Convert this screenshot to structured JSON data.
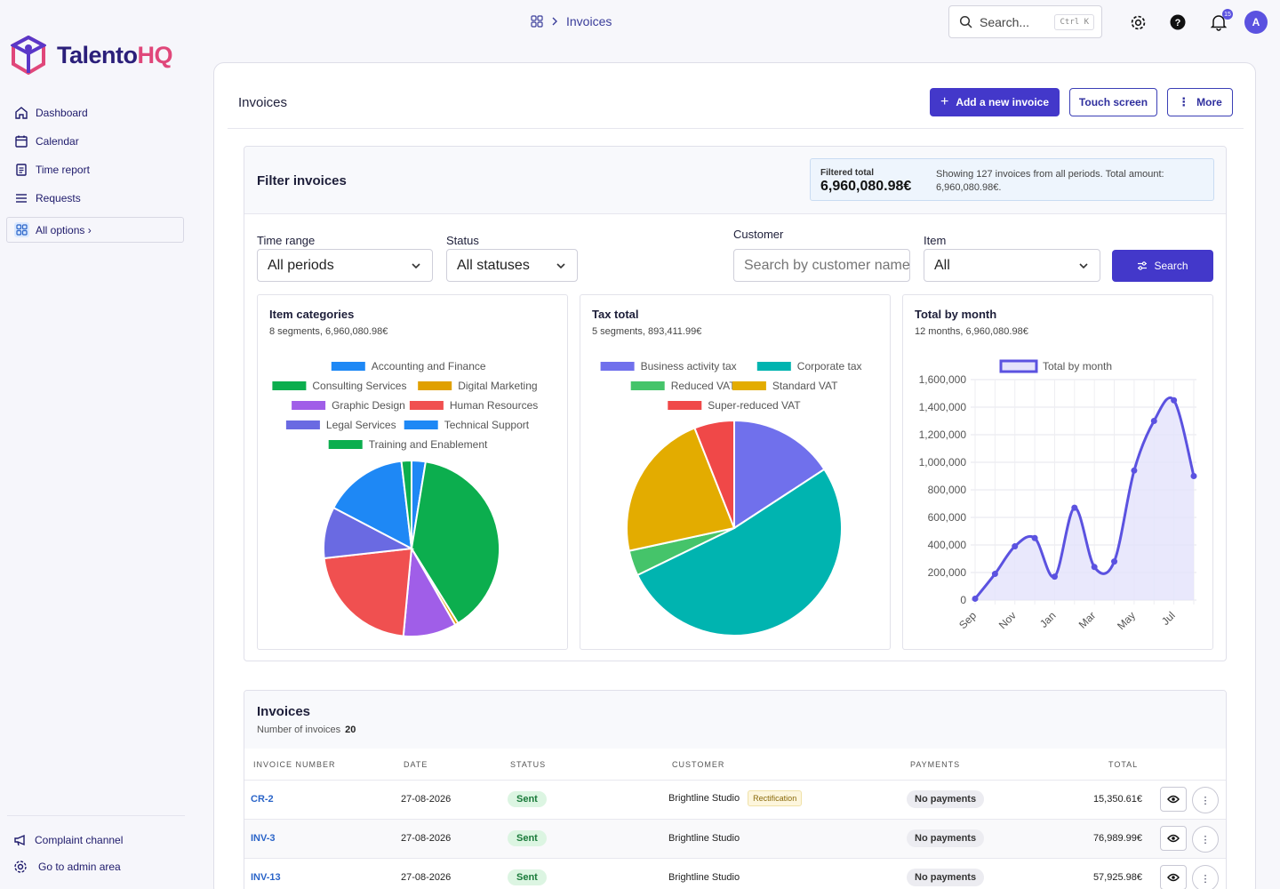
{
  "brand": {
    "name_part1": "Talento",
    "name_part2": "HQ"
  },
  "sidebar": {
    "items": [
      {
        "label": "Dashboard"
      },
      {
        "label": "Calendar"
      },
      {
        "label": "Time report"
      },
      {
        "label": "Requests"
      }
    ],
    "all_options": "All options ›",
    "bottom": [
      {
        "label": "Complaint channel"
      },
      {
        "label": "Go to admin area"
      }
    ]
  },
  "topbar": {
    "breadcrumb": "Invoices",
    "search_placeholder": "Search...",
    "search_shortcut": "Ctrl K",
    "notification_count": "15",
    "avatar_initial": "A"
  },
  "page": {
    "title": "Invoices",
    "add_button": "Add a new invoice",
    "touch_button": "Touch screen",
    "more_button": "More"
  },
  "filter": {
    "title": "Filter invoices",
    "total_label": "Filtered total",
    "total_value": "6,960,080.98€",
    "total_desc": "Showing 127 invoices from all periods. Total amount: 6,960,080.98€.",
    "time_range_label": "Time range",
    "time_range_value": "All periods",
    "status_label": "Status",
    "status_value": "All statuses",
    "customer_label": "Customer",
    "customer_placeholder": "Search by customer name",
    "item_label": "Item",
    "item_value": "All",
    "search_button": "Search"
  },
  "chart_data": [
    {
      "type": "pie",
      "title": "Item categories",
      "subtitle": "8 segments, 6,960,080.98€",
      "legend_placement": "top",
      "slices": [
        {
          "label": "Accounting and Finance",
          "value": 2.5,
          "color": "#1e88f5"
        },
        {
          "label": "Consulting Services",
          "value": 37.6,
          "color": "#0cae4e"
        },
        {
          "label": "Digital Marketing",
          "value": 0.6,
          "color": "#e0a000"
        },
        {
          "label": "Graphic Design",
          "value": 9.5,
          "color": "#a05ee8"
        },
        {
          "label": "Human Resources",
          "value": 21.2,
          "color": "#f05050"
        },
        {
          "label": "Legal Services",
          "value": 9.2,
          "color": "#6a6ae2"
        },
        {
          "label": "Technical Support",
          "value": 15.1,
          "color": "#1e88f5"
        },
        {
          "label": "Training and Enablement",
          "value": 1.8,
          "color": "#0cae4e"
        }
      ]
    },
    {
      "type": "pie",
      "title": "Tax total",
      "subtitle": "5 segments, 893,411.99€",
      "legend_placement": "top",
      "slices": [
        {
          "label": "Business activity tax",
          "value": 15.8,
          "color": "#7070ec"
        },
        {
          "label": "Corporate tax",
          "value": 52.0,
          "color": "#00b4b0"
        },
        {
          "label": "Reduced VAT",
          "value": 3.8,
          "color": "#45c46a"
        },
        {
          "label": "Standard VAT",
          "value": 22.4,
          "color": "#e3ac00"
        },
        {
          "label": "Super-reduced VAT",
          "value": 6.0,
          "color": "#f04848"
        }
      ]
    },
    {
      "type": "area",
      "title": "Total by month",
      "subtitle": "12 months, 6,960,080.98€",
      "series": [
        {
          "name": "Total by month",
          "values": [
            10000,
            190000,
            390000,
            450000,
            170000,
            670000,
            240000,
            280000,
            940000,
            1300000,
            1450000,
            900000
          ]
        }
      ],
      "x": [
        "Sep",
        "Oct",
        "Nov",
        "Dec",
        "Jan",
        "Feb",
        "Mar",
        "Apr",
        "May",
        "Jun",
        "Jul",
        "Aug"
      ],
      "x_tick_labels": [
        "Sep",
        "Nov",
        "Jan",
        "Mar",
        "May",
        "Jul"
      ],
      "y_ticks": [
        "0",
        "200,000",
        "400,000",
        "600,000",
        "800,000",
        "1,000,000",
        "1,200,000",
        "1,400,000",
        "1,600,000"
      ],
      "ylim": [
        0,
        1600000
      ],
      "grid": true,
      "legend_placement": "top",
      "line_color": "#5b52e0",
      "fill_color": "#e4e2fb"
    }
  ],
  "invoices": {
    "title": "Invoices",
    "count_label": "Number of invoices",
    "count": "20",
    "columns": [
      "INVOICE NUMBER",
      "DATE",
      "STATUS",
      "CUSTOMER",
      "PAYMENTS",
      "TOTAL"
    ],
    "rows": [
      {
        "number": "CR-2",
        "date": "27-08-2026",
        "status": "Sent",
        "customer": "Brightline Studio",
        "tag": "Rectification",
        "payments": "No payments",
        "total": "15,350.61€"
      },
      {
        "number": "INV-3",
        "date": "27-08-2026",
        "status": "Sent",
        "customer": "Brightline Studio",
        "tag": "",
        "payments": "No payments",
        "total": "76,989.99€"
      },
      {
        "number": "INV-13",
        "date": "27-08-2026",
        "status": "Sent",
        "customer": "Brightline Studio",
        "tag": "",
        "payments": "No payments",
        "total": "57,925.98€"
      }
    ]
  }
}
